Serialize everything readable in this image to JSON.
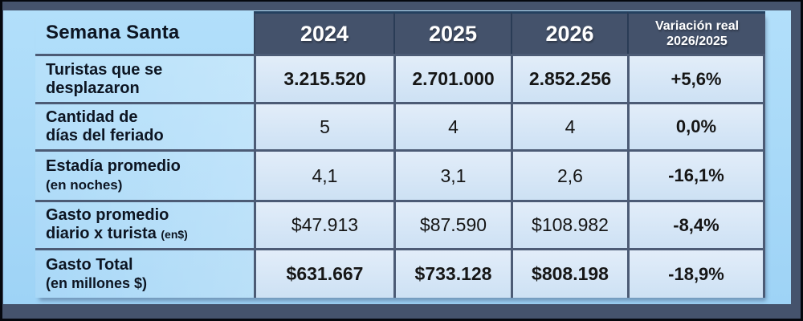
{
  "colors": {
    "frame": "#45536C",
    "panel_top": "#b2dffa",
    "panel_bottom": "#9ed3f6",
    "band": "#44526B",
    "band_edge": "#24405F",
    "line": "#4C5B75",
    "cell_top": "#e2edf9",
    "cell_bottom": "#cde1f4",
    "year_text": "#ffffff",
    "text": "#0d1522"
  },
  "table": {
    "header": {
      "title": "Semana Santa",
      "years": [
        "2024",
        "2025",
        "2026"
      ],
      "variation_line1": "Variación real",
      "variation_line2": "2026/2025"
    },
    "rows": [
      {
        "label_line1": "Turistas que se",
        "label_line2": "desplazaron",
        "values": [
          "3.215.520",
          "2.701.000",
          "2.852.256"
        ],
        "variation": "+5,6%"
      },
      {
        "label_line1": "Cantidad de",
        "label_line2": "días del feriado",
        "values": [
          "5",
          "4",
          "4"
        ],
        "variation": "0,0%"
      },
      {
        "label_line1": "Estadía promedio",
        "label_line2": "(en noches)",
        "values": [
          "4,1",
          "3,1",
          "2,6"
        ],
        "variation": "-16,1%"
      },
      {
        "label_line1": "Gasto promedio",
        "label_line2": "diario x turista",
        "label_suffix": "(en$)",
        "values": [
          "$47.913",
          "$87.590",
          "$108.982"
        ],
        "variation": "-8,4%"
      },
      {
        "label_line1": "Gasto Total",
        "label_line2": "(en millones $)",
        "values": [
          "$631.667",
          "$733.128",
          "$808.198"
        ],
        "variation": "-18,9%"
      }
    ]
  },
  "chart_data": {
    "type": "table",
    "title": "Semana Santa",
    "columns": [
      "2024",
      "2025",
      "2026",
      "Variación real 2026/2025"
    ],
    "rows": [
      {
        "label": "Turistas que se desplazaron",
        "values": [
          "3.215.520",
          "2.701.000",
          "2.852.256",
          "+5,6%"
        ]
      },
      {
        "label": "Cantidad de días del feriado",
        "values": [
          "5",
          "4",
          "4",
          "0,0%"
        ]
      },
      {
        "label": "Estadía promedio (en noches)",
        "values": [
          "4,1",
          "3,1",
          "2,6",
          "-16,1%"
        ]
      },
      {
        "label": "Gasto promedio diario x turista (en$)",
        "values": [
          "$47.913",
          "$87.590",
          "$108.982",
          "-8,4%"
        ]
      },
      {
        "label": "Gasto Total (en millones $)",
        "values": [
          "$631.667",
          "$733.128",
          "$808.198",
          "-18,9%"
        ]
      }
    ]
  }
}
